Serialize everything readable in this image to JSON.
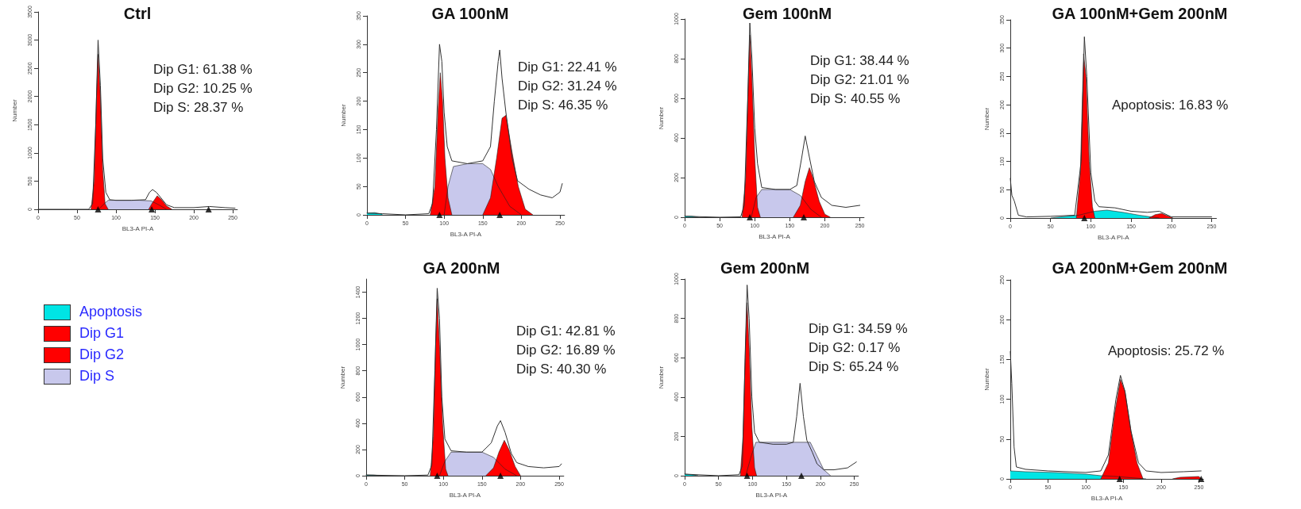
{
  "chart_data": [
    {
      "type": "area",
      "title": "Ctrl",
      "xlabel": "BL3-A PI-A",
      "ylabel": "Number",
      "xlim": [
        0,
        256
      ],
      "xticks": [
        0,
        50,
        100,
        150,
        200,
        250
      ],
      "ylim": [
        0,
        3500
      ],
      "yticks": [
        0,
        500,
        1000,
        1500,
        2000,
        2500,
        3000,
        3500
      ],
      "annotations": [
        "Dip G1: 61.38 %",
        "Dip G2: 10.25 %",
        "Dip S: 28.37 %"
      ],
      "series": [
        {
          "color": "#c8c8ec",
          "x": [
            78,
            85,
            90,
            100,
            130,
            145,
            155,
            165
          ],
          "values": [
            0,
            100,
            160,
            160,
            160,
            150,
            80,
            0
          ]
        },
        {
          "color": "#ff0000",
          "x": [
            68,
            72,
            75,
            77,
            80,
            83,
            86,
            90
          ],
          "values": [
            0,
            500,
            2000,
            2750,
            2000,
            700,
            100,
            0
          ]
        },
        {
          "color": "#ff0000",
          "x": [
            142,
            147,
            153,
            158,
            165,
            172
          ],
          "values": [
            0,
            120,
            240,
            180,
            60,
            0
          ]
        },
        {
          "type": "line",
          "color": "#333333",
          "x": [
            0,
            40,
            65,
            70,
            74,
            77,
            80,
            83,
            87,
            92,
            100,
            120,
            138,
            143,
            147,
            152,
            158,
            165,
            175,
            200,
            220,
            240,
            253
          ],
          "values": [
            0,
            0,
            0,
            100,
            1500,
            3000,
            2200,
            900,
            300,
            170,
            160,
            160,
            170,
            300,
            350,
            300,
            200,
            80,
            30,
            30,
            50,
            30,
            20
          ]
        },
        {
          "type": "scatter",
          "marker": "triangle",
          "color": "#000000",
          "x": [
            77,
            146,
            219
          ],
          "values": [
            0,
            0,
            0
          ]
        }
      ]
    },
    {
      "type": "area",
      "title": "GA 100nM",
      "xlabel": "BL3-A PI-A",
      "ylabel": "Number",
      "xlim": [
        0,
        256
      ],
      "xticks": [
        0,
        50,
        100,
        150,
        200,
        250
      ],
      "ylim": [
        0,
        350
      ],
      "yticks": [
        0,
        50,
        100,
        150,
        200,
        250,
        300,
        350
      ],
      "annotations": [
        "Dip G1: 22.41 %",
        "Dip G2: 31.24 %",
        "Dip S: 46.35 %"
      ],
      "series": [
        {
          "color": "#00e5e5",
          "x": [
            0,
            10,
            20
          ],
          "values": [
            3,
            4,
            1
          ]
        },
        {
          "color": "#c8c8ec",
          "x": [
            100,
            105,
            112,
            130,
            150,
            160,
            170,
            185,
            200
          ],
          "values": [
            0,
            50,
            85,
            90,
            90,
            80,
            50,
            15,
            0
          ]
        },
        {
          "color": "#ff0000",
          "x": [
            82,
            88,
            92,
            95,
            98,
            101,
            105,
            110
          ],
          "values": [
            0,
            50,
            180,
            250,
            200,
            100,
            30,
            0
          ]
        },
        {
          "color": "#ff0000",
          "x": [
            150,
            160,
            168,
            175,
            180,
            188,
            196,
            205,
            215
          ],
          "values": [
            0,
            30,
            100,
            170,
            175,
            110,
            50,
            10,
            0
          ]
        },
        {
          "type": "line",
          "color": "#333333",
          "x": [
            0,
            20,
            50,
            80,
            85,
            90,
            94,
            97,
            100,
            104,
            110,
            130,
            150,
            160,
            165,
            170,
            172,
            175,
            180,
            188,
            195,
            210,
            225,
            240,
            250,
            253
          ],
          "values": [
            3,
            2,
            0,
            2,
            20,
            150,
            300,
            270,
            180,
            120,
            95,
            90,
            95,
            120,
            200,
            270,
            290,
            240,
            180,
            100,
            60,
            45,
            35,
            30,
            40,
            55
          ]
        },
        {
          "type": "scatter",
          "marker": "triangle",
          "color": "#000000",
          "x": [
            94,
            172
          ],
          "values": [
            0,
            0
          ]
        }
      ]
    },
    {
      "type": "area",
      "title": "Gem 100nM",
      "xlabel": "BL3-A PI-A",
      "ylabel": "Number",
      "xlim": [
        0,
        256
      ],
      "xticks": [
        0,
        50,
        100,
        150,
        200,
        250
      ],
      "ylim": [
        0,
        1000
      ],
      "yticks": [
        0,
        200,
        400,
        600,
        800,
        1000
      ],
      "annotations": [
        "Dip G1: 38.44 %",
        "Dip G2: 21.01 %",
        "Dip S: 40.55 %"
      ],
      "series": [
        {
          "color": "#00e5e5",
          "x": [
            0,
            10,
            20
          ],
          "values": [
            5,
            5,
            0
          ]
        },
        {
          "color": "#c8c8ec",
          "x": [
            95,
            102,
            110,
            150,
            165,
            180,
            195
          ],
          "values": [
            0,
            100,
            140,
            140,
            110,
            40,
            0
          ]
        },
        {
          "color": "#ff0000",
          "x": [
            82,
            87,
            91,
            93,
            96,
            100,
            104,
            108
          ],
          "values": [
            0,
            200,
            700,
            920,
            700,
            300,
            50,
            0
          ]
        },
        {
          "color": "#ff0000",
          "x": [
            155,
            165,
            172,
            178,
            183,
            192,
            200,
            208
          ],
          "values": [
            0,
            60,
            180,
            250,
            200,
            80,
            15,
            0
          ]
        },
        {
          "type": "line",
          "color": "#333333",
          "x": [
            0,
            50,
            80,
            85,
            90,
            93,
            96,
            100,
            104,
            110,
            130,
            150,
            160,
            167,
            172,
            177,
            185,
            195,
            210,
            230,
            250
          ],
          "values": [
            5,
            0,
            2,
            60,
            600,
            980,
            800,
            450,
            270,
            150,
            140,
            140,
            160,
            300,
            410,
            320,
            180,
            100,
            60,
            50,
            60
          ]
        },
        {
          "type": "scatter",
          "marker": "triangle",
          "color": "#000000",
          "x": [
            93,
            170
          ],
          "values": [
            0,
            0
          ]
        }
      ]
    },
    {
      "type": "area",
      "title": "GA 100nM+Gem 200nM",
      "xlabel": "BL3-A PI-A",
      "ylabel": "Number",
      "xlim": [
        0,
        256
      ],
      "xticks": [
        0,
        50,
        100,
        150,
        200,
        250
      ],
      "ylim": [
        0,
        350
      ],
      "yticks": [
        0,
        50,
        100,
        150,
        200,
        250,
        300,
        350
      ],
      "annotations": [
        "Apoptosis: 16.83 %"
      ],
      "series": [
        {
          "color": "#00e5e5",
          "x": [
            50,
            70,
            85,
            105,
            120,
            140,
            160,
            175,
            185
          ],
          "values": [
            0,
            3,
            5,
            12,
            14,
            10,
            5,
            2,
            0
          ]
        },
        {
          "color": "#ff0000",
          "x": [
            82,
            87,
            91,
            94,
            98,
            102,
            105
          ],
          "values": [
            0,
            80,
            290,
            250,
            100,
            20,
            0
          ]
        },
        {
          "color": "#ff0000",
          "x": [
            172,
            180,
            188,
            195,
            202
          ],
          "values": [
            0,
            6,
            8,
            4,
            0
          ]
        },
        {
          "type": "line",
          "color": "#333333",
          "x": [
            0,
            2,
            5,
            10,
            20,
            50,
            80,
            88,
            92,
            95,
            100,
            105,
            110,
            130,
            150,
            170,
            185,
            200,
            250
          ],
          "values": [
            70,
            40,
            30,
            5,
            2,
            3,
            5,
            100,
            320,
            250,
            80,
            30,
            20,
            18,
            12,
            10,
            12,
            2,
            2
          ]
        },
        {
          "type": "scatter",
          "marker": "triangle",
          "color": "#000000",
          "x": [
            92
          ],
          "values": [
            0
          ]
        }
      ]
    },
    {
      "type": "other",
      "annotations": [
        "Apoptosis",
        "Dip G1",
        "Dip G2",
        "Dip S"
      ],
      "colors": [
        "#00e5e5",
        "#ff0000",
        "#ff0000",
        "#c8c8ec"
      ]
    },
    {
      "type": "area",
      "title": "GA 200nM",
      "xlabel": "BL3-A PI-A",
      "ylabel": "Number",
      "xlim": [
        0,
        256
      ],
      "xticks": [
        0,
        50,
        100,
        150,
        200,
        250
      ],
      "ylim": [
        0,
        1500
      ],
      "yticks": [
        0,
        200,
        400,
        600,
        800,
        1000,
        1200,
        1400
      ],
      "annotations": [
        "Dip G1: 42.81 %",
        "Dip G2: 16.89 %",
        "Dip S: 40.30 %"
      ],
      "series": [
        {
          "color": "#00e5e5",
          "x": [
            0,
            10,
            20
          ],
          "values": [
            6,
            5,
            0
          ]
        },
        {
          "color": "#c8c8ec",
          "x": [
            95,
            102,
            110,
            150,
            165,
            180,
            195
          ],
          "values": [
            0,
            110,
            180,
            180,
            140,
            50,
            0
          ]
        },
        {
          "color": "#ff0000",
          "x": [
            83,
            87,
            90,
            92,
            95,
            99,
            103,
            106
          ],
          "values": [
            0,
            300,
            1000,
            1350,
            1000,
            400,
            50,
            0
          ]
        },
        {
          "color": "#ff0000",
          "x": [
            155,
            165,
            172,
            179,
            185,
            193,
            200
          ],
          "values": [
            0,
            60,
            180,
            270,
            200,
            70,
            0
          ]
        },
        {
          "type": "line",
          "color": "#333333",
          "x": [
            0,
            50,
            80,
            85,
            89,
            92,
            95,
            98,
            102,
            110,
            130,
            150,
            162,
            170,
            174,
            180,
            188,
            195,
            210,
            230,
            250,
            253
          ],
          "values": [
            5,
            0,
            5,
            80,
            800,
            1430,
            1200,
            600,
            280,
            190,
            180,
            180,
            250,
            380,
            420,
            330,
            170,
            100,
            70,
            60,
            70,
            90
          ]
        },
        {
          "type": "scatter",
          "marker": "triangle",
          "color": "#000000",
          "x": [
            92,
            174
          ],
          "values": [
            0,
            0
          ]
        }
      ]
    },
    {
      "type": "area",
      "title": "Gem 200nM",
      "xlabel": "BL3-A PI-A",
      "ylabel": "Number",
      "xlim": [
        0,
        256
      ],
      "xticks": [
        0,
        50,
        100,
        150,
        200,
        250
      ],
      "ylim": [
        0,
        1000
      ],
      "yticks": [
        0,
        200,
        400,
        600,
        800,
        1000
      ],
      "annotations": [
        "Dip G1: 34.59 %",
        "Dip G2: 0.17 %",
        "Dip S: 65.24 %"
      ],
      "series": [
        {
          "color": "#00e5e5",
          "x": [
            0,
            10,
            20
          ],
          "values": [
            8,
            5,
            0
          ]
        },
        {
          "color": "#c8c8ec",
          "x": [
            90,
            98,
            105,
            185,
            195,
            205,
            215
          ],
          "values": [
            0,
            100,
            170,
            170,
            100,
            30,
            0
          ]
        },
        {
          "color": "#ff0000",
          "x": [
            82,
            86,
            90,
            92,
            95,
            99,
            103,
            106
          ],
          "values": [
            0,
            200,
            700,
            880,
            650,
            250,
            40,
            0
          ]
        },
        {
          "type": "line",
          "color": "#333333",
          "x": [
            0,
            50,
            80,
            85,
            89,
            92,
            95,
            99,
            103,
            110,
            130,
            150,
            160,
            165,
            170,
            175,
            180,
            188,
            195,
            205,
            220,
            240,
            253
          ],
          "values": [
            8,
            0,
            5,
            50,
            600,
            970,
            800,
            400,
            220,
            170,
            160,
            160,
            170,
            300,
            470,
            300,
            180,
            120,
            60,
            30,
            30,
            40,
            70
          ]
        },
        {
          "type": "scatter",
          "marker": "triangle",
          "color": "#000000",
          "x": [
            92,
            172
          ],
          "values": [
            0,
            0
          ]
        }
      ]
    },
    {
      "type": "area",
      "title": "GA 200nM+Gem 200nM",
      "xlabel": "BL3-A PI-A",
      "ylabel": "Number",
      "xlim": [
        0,
        256
      ],
      "xticks": [
        0,
        50,
        100,
        150,
        200,
        250
      ],
      "ylim": [
        0,
        250
      ],
      "yticks": [
        0,
        50,
        100,
        150,
        200,
        250
      ],
      "annotations": [
        "Apoptosis: 25.72 %"
      ],
      "series": [
        {
          "color": "#00e5e5",
          "x": [
            0,
            20,
            60,
            100,
            120,
            140,
            180
          ],
          "values": [
            10,
            9,
            8,
            6,
            4,
            3,
            0
          ]
        },
        {
          "color": "#ff0000",
          "x": [
            120,
            130,
            138,
            146,
            152,
            160,
            168,
            176
          ],
          "values": [
            0,
            20,
            80,
            125,
            110,
            60,
            20,
            0
          ]
        },
        {
          "color": "#ff0000",
          "x": [
            215,
            225,
            250,
            253
          ],
          "values": [
            0,
            2,
            3,
            0
          ]
        },
        {
          "type": "line",
          "color": "#333333",
          "x": [
            0,
            2,
            5,
            8,
            20,
            50,
            100,
            120,
            130,
            140,
            146,
            152,
            160,
            170,
            180,
            200,
            230,
            253
          ],
          "values": [
            160,
            120,
            40,
            15,
            12,
            10,
            8,
            10,
            30,
            100,
            130,
            110,
            60,
            20,
            10,
            8,
            9,
            10
          ]
        },
        {
          "type": "scatter",
          "marker": "triangle",
          "color": "#000000",
          "x": [
            145,
            253
          ],
          "values": [
            0,
            0
          ]
        }
      ]
    }
  ]
}
